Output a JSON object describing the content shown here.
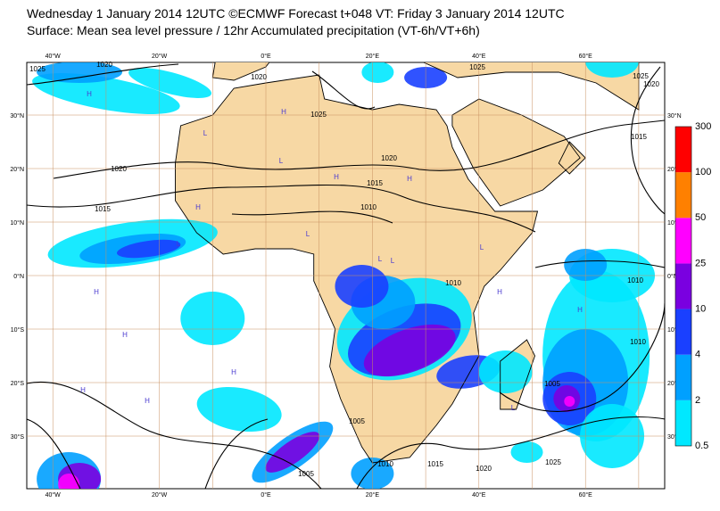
{
  "header": {
    "title": "Wednesday 1 January 2014 12UTC ©ECMWF Forecast t+048 VT: Friday 3 January 2014 12UTC",
    "subtitle": "Surface: Mean sea level pressure / 12hr Accumulated precipitation (VT-6h/VT+6h)"
  },
  "map": {
    "lon_labels": [
      "40°W",
      "20°W",
      "0°E",
      "20°E",
      "40°E",
      "60°E"
    ],
    "lat_labels": [
      "30°N",
      "20°N",
      "10°N",
      "0°N",
      "10°S",
      "20°S",
      "30°S"
    ],
    "isobar_labels": [
      "1025",
      "1020",
      "1020",
      "1025",
      "1020",
      "1015",
      "1010",
      "1015",
      "1020",
      "1025",
      "1025",
      "1020",
      "1015",
      "1010",
      "1010",
      "1010",
      "1005",
      "1020",
      "1025",
      "1015",
      "1010",
      "1005",
      "1005"
    ],
    "pressure_centers": [
      "H",
      "H",
      "L",
      "L",
      "H",
      "H",
      "H",
      "L",
      "L",
      "L",
      "H",
      "H",
      "H",
      "L",
      "H",
      "H",
      "L",
      "H",
      "L",
      "H"
    ]
  },
  "legend": {
    "levels": [
      0.5,
      2,
      4,
      10,
      25,
      50,
      100,
      300
    ],
    "colors": [
      "#00e8ff",
      "#00a0ff",
      "#1a40ff",
      "#7a00e0",
      "#ff00ff",
      "#ff8000",
      "#ff0000"
    ]
  }
}
